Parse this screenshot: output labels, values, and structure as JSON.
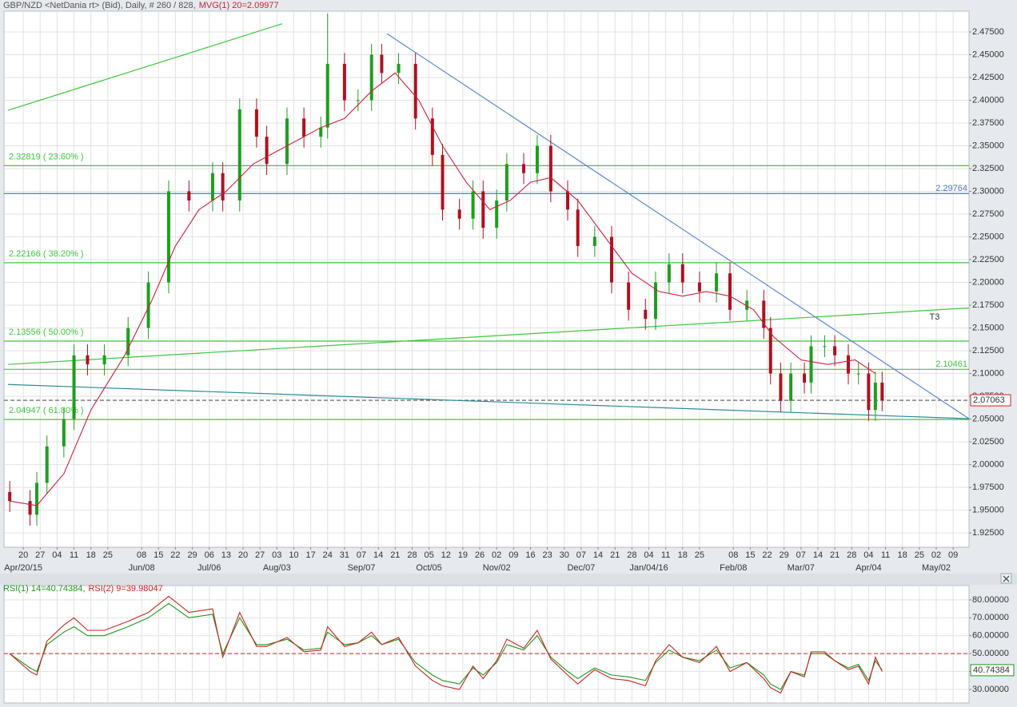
{
  "chart_data": [
    {
      "type": "candlestick",
      "title": "GBP/NZD <NetDania rt> (Bid), Daily, # 260 / 828,",
      "xlim": [
        -5.7,
        279.7
      ],
      "ylim": [
        1.9093,
        2.4978
      ],
      "grid": true,
      "up_color": "#1e9e1e",
      "down_color": "#b01020",
      "yticks": [
        {
          "value": 2.475,
          "label": "2.47500"
        },
        {
          "value": 2.45,
          "label": "2.45000"
        },
        {
          "value": 2.425,
          "label": "2.42500"
        },
        {
          "value": 2.4,
          "label": "2.40000"
        },
        {
          "value": 2.375,
          "label": "2.37500"
        },
        {
          "value": 2.35,
          "label": "2.35000"
        },
        {
          "value": 2.325,
          "label": "2.32500"
        },
        {
          "value": 2.3,
          "label": "2.30000"
        },
        {
          "value": 2.275,
          "label": "2.27500"
        },
        {
          "value": 2.25,
          "label": "2.25000"
        },
        {
          "value": 2.225,
          "label": "2.22500"
        },
        {
          "value": 2.2,
          "label": "2.20000"
        },
        {
          "value": 2.175,
          "label": "2.17500"
        },
        {
          "value": 2.15,
          "label": "2.15000"
        },
        {
          "value": 2.125,
          "label": "2.12500"
        },
        {
          "value": 2.1,
          "label": "2.10000"
        },
        {
          "value": 2.075,
          "label": "2.07500"
        },
        {
          "value": 2.05,
          "label": "2.05000"
        },
        {
          "value": 2.025,
          "label": "2.02500"
        },
        {
          "value": 2.0,
          "label": "2.00000"
        },
        {
          "value": 1.975,
          "label": "1.97500"
        },
        {
          "value": 1.95,
          "label": "1.95000"
        },
        {
          "value": 1.925,
          "label": "1.92500"
        }
      ],
      "xticks": [
        {
          "value": 0,
          "label": "20"
        },
        {
          "value": 5,
          "label": "27"
        },
        {
          "value": 10,
          "label": "04"
        },
        {
          "value": 15,
          "label": "11"
        },
        {
          "value": 20,
          "label": "18"
        },
        {
          "value": 25,
          "label": "25"
        },
        {
          "value": 35,
          "label": "08"
        },
        {
          "value": 40,
          "label": "15"
        },
        {
          "value": 45,
          "label": "22"
        },
        {
          "value": 50,
          "label": "29"
        },
        {
          "value": 55,
          "label": "06"
        },
        {
          "value": 60,
          "label": "13"
        },
        {
          "value": 65,
          "label": "20"
        },
        {
          "value": 70,
          "label": "27"
        },
        {
          "value": 75,
          "label": "03"
        },
        {
          "value": 80,
          "label": "10"
        },
        {
          "value": 85,
          "label": "17"
        },
        {
          "value": 90,
          "label": "24"
        },
        {
          "value": 95,
          "label": "31"
        },
        {
          "value": 100,
          "label": "07"
        },
        {
          "value": 105,
          "label": "14"
        },
        {
          "value": 110,
          "label": "21"
        },
        {
          "value": 115,
          "label": "28"
        },
        {
          "value": 120,
          "label": "05"
        },
        {
          "value": 125,
          "label": "12"
        },
        {
          "value": 130,
          "label": "19"
        },
        {
          "value": 135,
          "label": "26"
        },
        {
          "value": 140,
          "label": "02"
        },
        {
          "value": 145,
          "label": "09"
        },
        {
          "value": 150,
          "label": "16"
        },
        {
          "value": 155,
          "label": "23"
        },
        {
          "value": 160,
          "label": "30"
        },
        {
          "value": 165,
          "label": "07"
        },
        {
          "value": 170,
          "label": "14"
        },
        {
          "value": 175,
          "label": "21"
        },
        {
          "value": 180,
          "label": "28"
        },
        {
          "value": 185,
          "label": "04"
        },
        {
          "value": 190,
          "label": "11"
        },
        {
          "value": 195,
          "label": "18"
        },
        {
          "value": 200,
          "label": "25"
        },
        {
          "value": 210,
          "label": "08"
        },
        {
          "value": 215,
          "label": "15"
        },
        {
          "value": 220,
          "label": "22"
        },
        {
          "value": 225,
          "label": "29"
        },
        {
          "value": 230,
          "label": "07"
        },
        {
          "value": 235,
          "label": "14"
        },
        {
          "value": 240,
          "label": "21"
        },
        {
          "value": 245,
          "label": "28"
        },
        {
          "value": 250,
          "label": "04"
        },
        {
          "value": 255,
          "label": "11"
        },
        {
          "value": 260,
          "label": "18"
        },
        {
          "value": 265,
          "label": "25"
        },
        {
          "value": 270,
          "label": "02"
        },
        {
          "value": 275,
          "label": "09"
        }
      ],
      "xticks_major": [
        {
          "value": 0,
          "label": "Apr/20/15"
        },
        {
          "value": 35,
          "label": "Jun/08"
        },
        {
          "value": 55,
          "label": "Jul/06"
        },
        {
          "value": 75,
          "label": "Aug/03"
        },
        {
          "value": 100,
          "label": "Sep/07"
        },
        {
          "value": 120,
          "label": "Oct/05"
        },
        {
          "value": 140,
          "label": "Nov/02"
        },
        {
          "value": 165,
          "label": "Dec/07"
        },
        {
          "value": 185,
          "label": "Jan/04/16"
        },
        {
          "value": 210,
          "label": "Feb/08"
        },
        {
          "value": 230,
          "label": "Mar/07"
        },
        {
          "value": 250,
          "label": "Apr/04"
        },
        {
          "value": 270,
          "label": "May/02"
        }
      ],
      "x": [
        -4,
        2,
        4,
        7,
        12,
        15,
        19,
        24,
        31,
        37,
        43,
        49,
        56,
        59,
        64,
        69,
        72,
        78,
        83,
        88,
        90,
        95,
        99,
        103,
        106,
        111,
        116,
        121,
        124,
        129,
        133,
        136,
        140,
        143,
        148,
        152,
        156,
        161,
        164,
        169,
        174,
        179,
        184,
        187,
        191,
        195,
        200,
        205,
        209,
        214,
        219,
        221,
        224,
        227,
        231,
        233,
        237,
        240,
        244,
        247,
        250,
        252,
        254
      ],
      "open": [
        1.97,
        1.96,
        1.945,
        1.98,
        2.02,
        2.05,
        2.12,
        2.11,
        2.12,
        2.15,
        2.2,
        2.3,
        2.29,
        2.32,
        2.29,
        2.39,
        2.36,
        2.33,
        2.38,
        2.36,
        2.37,
        2.44,
        2.4,
        2.4,
        2.45,
        2.43,
        2.44,
        2.38,
        2.34,
        2.28,
        2.27,
        2.3,
        2.26,
        2.29,
        2.33,
        2.32,
        2.35,
        2.3,
        2.28,
        2.24,
        2.25,
        2.2,
        2.17,
        2.16,
        2.2,
        2.22,
        2.2,
        2.19,
        2.21,
        2.17,
        2.18,
        2.15,
        2.1,
        2.07,
        2.1,
        2.09,
        2.13,
        2.13,
        2.12,
        2.1,
        2.1,
        2.06,
        2.09
      ],
      "high": [
        1.982,
        1.972,
        1.992,
        2.032,
        2.062,
        2.132,
        2.132,
        2.132,
        2.162,
        2.212,
        2.312,
        2.312,
        2.332,
        2.332,
        2.402,
        2.402,
        2.372,
        2.392,
        2.392,
        2.382,
        2.495,
        2.452,
        2.412,
        2.462,
        2.462,
        2.452,
        2.452,
        2.392,
        2.352,
        2.292,
        2.312,
        2.312,
        2.302,
        2.342,
        2.342,
        2.362,
        2.362,
        2.312,
        2.292,
        2.262,
        2.262,
        2.212,
        2.182,
        2.212,
        2.232,
        2.232,
        2.212,
        2.222,
        2.222,
        2.192,
        2.192,
        2.162,
        2.112,
        2.112,
        2.112,
        2.142,
        2.142,
        2.142,
        2.132,
        2.112,
        2.112,
        2.102,
        2.102
      ],
      "low": [
        1.948,
        1.933,
        1.933,
        1.968,
        2.008,
        2.038,
        2.098,
        2.098,
        2.108,
        2.138,
        2.188,
        2.278,
        2.278,
        2.278,
        2.278,
        2.348,
        2.318,
        2.318,
        2.348,
        2.348,
        2.358,
        2.388,
        2.388,
        2.388,
        2.418,
        2.418,
        2.368,
        2.328,
        2.268,
        2.258,
        2.258,
        2.248,
        2.248,
        2.278,
        2.308,
        2.308,
        2.288,
        2.268,
        2.228,
        2.228,
        2.188,
        2.158,
        2.148,
        2.148,
        2.188,
        2.188,
        2.178,
        2.178,
        2.158,
        2.158,
        2.138,
        2.088,
        2.058,
        2.058,
        2.078,
        2.078,
        2.118,
        2.108,
        2.088,
        2.088,
        2.048,
        2.048,
        2.0586
      ],
      "close": [
        1.96,
        1.945,
        1.98,
        2.02,
        2.05,
        2.12,
        2.11,
        2.12,
        2.15,
        2.2,
        2.3,
        2.29,
        2.32,
        2.29,
        2.39,
        2.36,
        2.33,
        2.38,
        2.36,
        2.37,
        2.44,
        2.4,
        2.4,
        2.45,
        2.43,
        2.44,
        2.38,
        2.34,
        2.28,
        2.27,
        2.3,
        2.26,
        2.29,
        2.33,
        2.32,
        2.35,
        2.3,
        2.28,
        2.24,
        2.25,
        2.2,
        2.17,
        2.16,
        2.2,
        2.22,
        2.2,
        2.19,
        2.21,
        2.17,
        2.18,
        2.15,
        2.1,
        2.07,
        2.1,
        2.09,
        2.13,
        2.13,
        2.12,
        2.1,
        2.1,
        2.06,
        2.09,
        2.0706
      ],
      "ma": {
        "name": "MVG(1) 20=2.09977",
        "color": "#d0203a",
        "x": [
          -4,
          4,
          12,
          20,
          30,
          38,
          45,
          52,
          60,
          68,
          78,
          88,
          95,
          103,
          110,
          117,
          124,
          131,
          138,
          144,
          150,
          156,
          164,
          172,
          180,
          188,
          195,
          202,
          209,
          216,
          222,
          230,
          238,
          246,
          252
        ],
        "y": [
          1.96,
          1.955,
          1.99,
          2.06,
          2.12,
          2.18,
          2.24,
          2.28,
          2.3,
          2.33,
          2.35,
          2.37,
          2.38,
          2.41,
          2.43,
          2.4,
          2.35,
          2.31,
          2.28,
          2.29,
          2.31,
          2.315,
          2.29,
          2.25,
          2.21,
          2.19,
          2.185,
          2.19,
          2.185,
          2.17,
          2.14,
          2.115,
          2.11,
          2.115,
          2.1
        ]
      },
      "hlines": [
        {
          "value": 2.32819,
          "label": "2.32819 ( 23.60% )",
          "color": "#3cc83c",
          "label_pos": "left"
        },
        {
          "value": 2.22166,
          "label": "2.22166 ( 38.20% )",
          "color": "#3cc83c",
          "label_pos": "left"
        },
        {
          "value": 2.13556,
          "label": "2.13556 ( 50.00% )",
          "color": "#3cc83c",
          "label_pos": "left"
        },
        {
          "value": 2.04947,
          "label": "2.04947 ( 61.80% )",
          "color": "#3cc83c",
          "label_pos": "left"
        },
        {
          "value": 2.29764,
          "label": "2.29764",
          "color": "#4a78c8",
          "label_pos": "right"
        },
        {
          "value": 2.10461,
          "label": "2.10461",
          "color": "#3cc83c",
          "label_pos": "right"
        },
        {
          "value": 2.07063,
          "label": "2.07063",
          "color": "#555555",
          "label_pos": "axis",
          "dashed": true
        }
      ],
      "trendlines": [
        {
          "x": [
            -4.5,
            76.6
          ],
          "y": [
            2.389,
            2.484
          ],
          "color": "#3cc83c"
        },
        {
          "x": [
            107.6,
            279.7
          ],
          "y": [
            2.473,
            2.0504
          ],
          "color": "#5a8ad8"
        },
        {
          "x": [
            -4.5,
            279.7
          ],
          "y": [
            2.11,
            2.172
          ],
          "color": "#3cc83c"
        },
        {
          "x": [
            -4.5,
            279.7
          ],
          "y": [
            2.088,
            2.0504
          ],
          "color": "#2a8a9a"
        }
      ],
      "annotations": [
        {
          "x": 268,
          "y": 2.162,
          "text": "T3"
        }
      ]
    },
    {
      "type": "line",
      "xlim": [
        -5.7,
        279.7
      ],
      "ylim": [
        22.4,
        88.0
      ],
      "grid": true,
      "yticks": [
        {
          "value": 80,
          "label": "80.00000"
        },
        {
          "value": 70,
          "label": "70.00000"
        },
        {
          "value": 60,
          "label": "60.00000"
        },
        {
          "value": 50,
          "label": "50.00000"
        },
        {
          "value": 40,
          "label": "40.00000"
        },
        {
          "value": 30,
          "label": "30.00000"
        }
      ],
      "hline": {
        "value": 50,
        "color": "#d02020"
      },
      "x": [
        -4,
        2,
        4,
        7,
        12,
        15,
        19,
        24,
        31,
        37,
        43,
        49,
        56,
        59,
        64,
        69,
        72,
        78,
        83,
        88,
        90,
        95,
        99,
        103,
        106,
        111,
        116,
        121,
        124,
        129,
        133,
        136,
        140,
        143,
        148,
        152,
        156,
        161,
        164,
        169,
        174,
        179,
        184,
        187,
        191,
        195,
        200,
        205,
        209,
        214,
        219,
        221,
        224,
        227,
        231,
        233,
        237,
        240,
        244,
        247,
        250,
        252,
        254
      ],
      "series": [
        {
          "name": "RSI(1) 14=40.74384,",
          "color": "#1a9a1a",
          "values": [
            50,
            42,
            40,
            55,
            62,
            65,
            60,
            60,
            65,
            70,
            78,
            70,
            72,
            50,
            70,
            55,
            55,
            58,
            52,
            53,
            62,
            55,
            56,
            60,
            55,
            58,
            45,
            38,
            35,
            33,
            42,
            38,
            45,
            55,
            52,
            60,
            48,
            40,
            36,
            42,
            38,
            37,
            35,
            45,
            52,
            48,
            46,
            52,
            42,
            45,
            38,
            33,
            30,
            40,
            38,
            50,
            50,
            46,
            42,
            44,
            35,
            46,
            40.74384
          ]
        },
        {
          "name": "RSI(2) 9=39.98047",
          "color": "#d02020",
          "values": [
            50,
            40,
            38,
            57,
            66,
            70,
            63,
            63,
            68,
            73,
            82,
            73,
            75,
            48,
            73,
            54,
            54,
            59,
            51,
            52,
            65,
            54,
            56,
            62,
            55,
            59,
            43,
            35,
            32,
            30,
            43,
            36,
            46,
            58,
            53,
            63,
            47,
            38,
            33,
            41,
            36,
            35,
            32,
            46,
            55,
            48,
            45,
            54,
            40,
            45,
            36,
            31,
            28,
            40,
            37,
            51,
            51,
            46,
            41,
            43,
            33,
            48,
            39.98047
          ]
        }
      ]
    }
  ]
}
